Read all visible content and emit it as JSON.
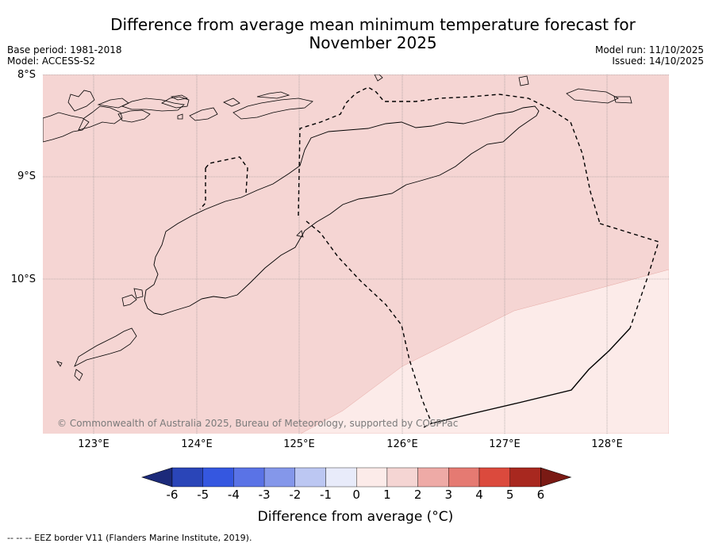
{
  "title": "Difference from average mean minimum temperature forecast for November 2025",
  "title_line1": "Difference from average mean minimum temperature forecast for",
  "title_line2": "November 2025",
  "base_period": "Base period: 1981-2018",
  "model": "Model: ACCESS-S2",
  "model_run": "Model run: 11/10/2025",
  "issued": "Issued: 14/10/2025",
  "copyright": "© Commonwealth of Australia 2025, Bureau of Meteorology, supported by COSPPac",
  "footer_note": "--  --  -- EEZ border V11 (Flanders Marine Institute, 2019).",
  "colors": {
    "anomaly_1_2": "#f5d5d3",
    "anomaly_0_1": "#fcebe9",
    "coast": "#000000",
    "grid": "#808080"
  },
  "chart_data": {
    "type": "heatmap",
    "title": "Difference from average mean minimum temperature forecast for November 2025",
    "xlabel": "",
    "ylabel": "",
    "lat_labels": [
      "8°S",
      "9°S",
      "10°S"
    ],
    "lon_labels": [
      "123°E",
      "124°E",
      "125°E",
      "126°E",
      "127°E",
      "128°E"
    ],
    "lat_range": [
      -11.5,
      -8.0
    ],
    "lon_range": [
      122.5,
      128.6
    ],
    "regions": [
      {
        "category": "1 to 2",
        "description": "most of the map"
      },
      {
        "category": "0 to 1",
        "description": "south-east corner"
      }
    ],
    "colorbar": {
      "title": "Difference from average (°C)",
      "ticks": [
        "-6",
        "-5",
        "-4",
        "-3",
        "-2",
        "-1",
        "0",
        "1",
        "2",
        "3",
        "4",
        "5",
        "6"
      ],
      "colors": [
        "#1c2a7a",
        "#2a45b8",
        "#3557e0",
        "#5a73e6",
        "#8497ea",
        "#bcc7f2",
        "#e8ebfa",
        "#fcebe9",
        "#f5d5d3",
        "#eeaaa6",
        "#e57a72",
        "#db4a3d",
        "#a8281f",
        "#7a1a14"
      ]
    }
  }
}
